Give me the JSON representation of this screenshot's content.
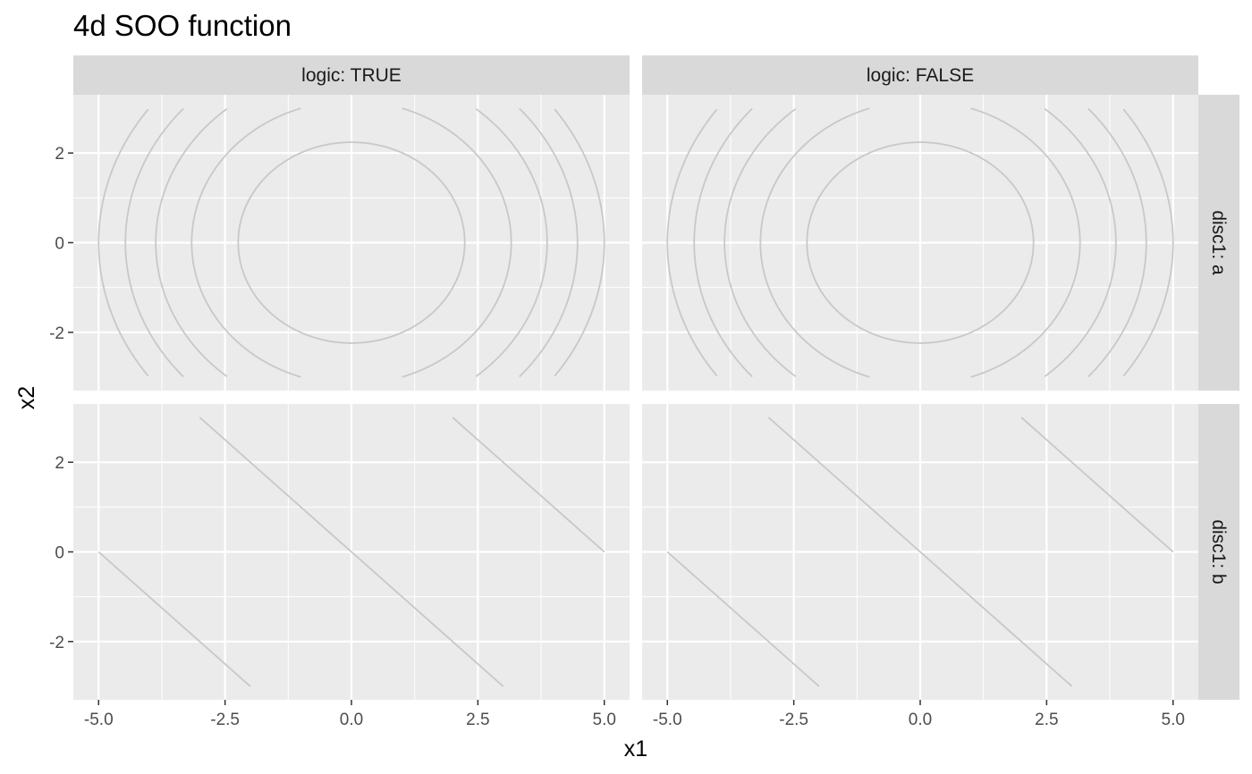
{
  "chart_data": {
    "type": "contour",
    "title": "4d SOO function",
    "xlabel": "x1",
    "ylabel": "x2",
    "xlim": [
      -5.5,
      5.5
    ],
    "ylim": [
      -3.3,
      3.3
    ],
    "x_ticks": [
      "-5.0",
      "-2.5",
      "0.0",
      "2.5",
      "5.0"
    ],
    "x_tick_values": [
      -5.0,
      -2.5,
      0.0,
      2.5,
      5.0
    ],
    "y_ticks": [
      "-2",
      "0",
      "2"
    ],
    "y_tick_values": [
      -2,
      0,
      2
    ],
    "grid": true,
    "facet_cols": [
      "logic: TRUE",
      "logic: FALSE"
    ],
    "facet_rows": [
      "disc1: a",
      "disc1: b"
    ],
    "contour_color": "#c8c8c8",
    "panel_background": "#ebebeb",
    "strip_background": "#d9d9d9",
    "panels": [
      {
        "row": 0,
        "col": 0,
        "kind": "circles",
        "radii": [
          2.24,
          3.16,
          3.87,
          4.47,
          5.0
        ]
      },
      {
        "row": 0,
        "col": 1,
        "kind": "circles",
        "radii": [
          2.24,
          3.16,
          3.87,
          4.47,
          5.0
        ]
      },
      {
        "row": 1,
        "col": 0,
        "kind": "lines",
        "line_sums": [
          -5,
          0,
          5
        ]
      },
      {
        "row": 1,
        "col": 1,
        "kind": "lines",
        "line_sums": [
          -5,
          0,
          5
        ]
      }
    ]
  }
}
